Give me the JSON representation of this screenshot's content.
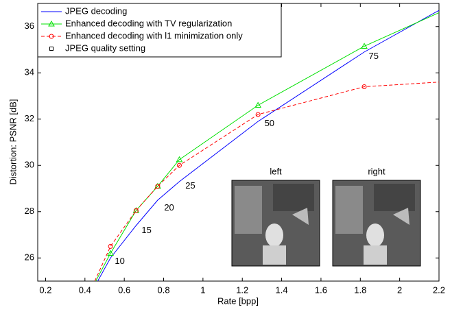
{
  "chart_data": {
    "type": "line",
    "xlabel": "Rate [bpp]",
    "ylabel": "Distortion: PSNR [dB]",
    "xlim": [
      0.16,
      2.2
    ],
    "ylim": [
      25,
      37
    ],
    "xticks": [
      0.2,
      0.4,
      0.6,
      0.8,
      1,
      1.2,
      1.4,
      1.6,
      1.8,
      2,
      2.2
    ],
    "yticks": [
      26,
      28,
      30,
      32,
      34,
      36
    ],
    "grid": false,
    "legend": "upper left",
    "series": [
      {
        "name": "JPEG decoding",
        "color": "#0000ff",
        "dash": "solid",
        "marker": "none",
        "x": [
          0.465,
          0.53,
          0.66,
          0.77,
          0.88,
          1.28,
          1.82,
          2.2
        ],
        "values": [
          25,
          26.0,
          27.4,
          28.5,
          29.3,
          31.9,
          34.9,
          36.7
        ]
      },
      {
        "name": "Enhanced decoding with TV regularization",
        "color": "#00e000",
        "dash": "solid",
        "marker": "triangle",
        "x": [
          0.455,
          0.53,
          0.66,
          0.77,
          0.88,
          1.28,
          1.82,
          2.2
        ],
        "values": [
          25,
          26.2,
          28.05,
          29.1,
          30.25,
          32.6,
          35.15,
          36.6
        ]
      },
      {
        "name": "Enhanced decoding with l1 minimization only",
        "color": "#ff0000",
        "dash": "dashed",
        "marker": "circle",
        "x": [
          0.45,
          0.53,
          0.66,
          0.77,
          0.88,
          1.28,
          1.82,
          2.2
        ],
        "values": [
          25,
          26.5,
          28.05,
          29.1,
          30.0,
          32.2,
          33.4,
          33.6
        ]
      }
    ],
    "quality_legend": "JPEG quality setting",
    "annotations": [
      {
        "label": "10",
        "x": 0.577,
        "y": 25.85
      },
      {
        "label": "15",
        "x": 0.713,
        "y": 27.18
      },
      {
        "label": "20",
        "x": 0.828,
        "y": 28.15
      },
      {
        "label": "25",
        "x": 0.936,
        "y": 29.1
      },
      {
        "label": "50",
        "x": 1.338,
        "y": 31.8
      },
      {
        "label": "75",
        "x": 1.868,
        "y": 34.7
      }
    ],
    "insets": [
      {
        "label": "left"
      },
      {
        "label": "right"
      }
    ]
  }
}
